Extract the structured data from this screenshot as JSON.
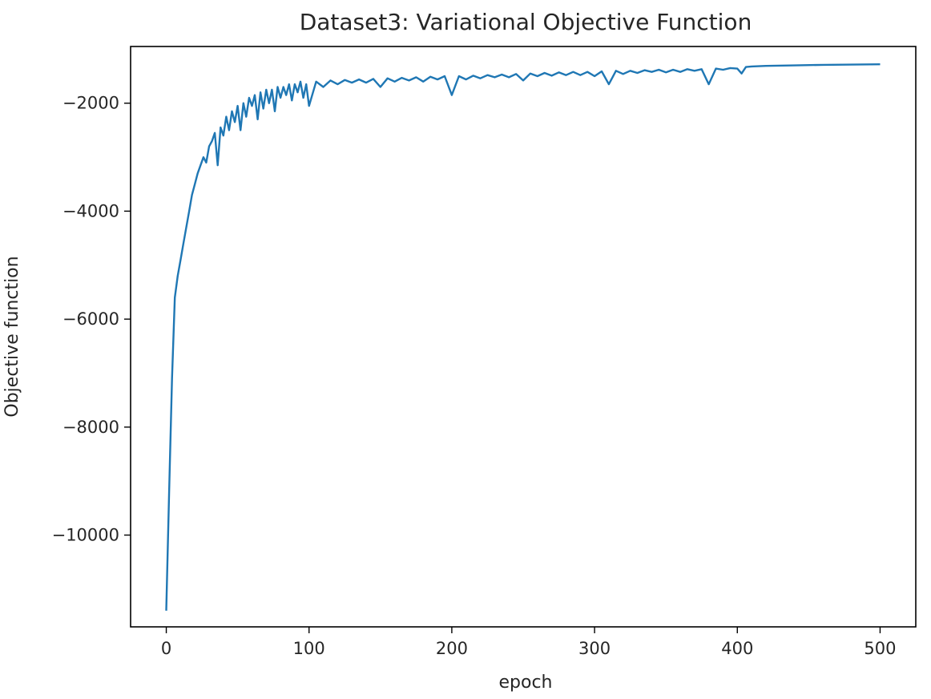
{
  "chart_data": {
    "type": "line",
    "title": "Dataset3: Variational Objective Function",
    "xlabel": "epoch",
    "ylabel": "Objective function",
    "xlim": [
      -25,
      525
    ],
    "ylim": [
      -11700,
      -950
    ],
    "xticks": [
      0,
      100,
      200,
      300,
      400,
      500
    ],
    "yticks": [
      -10000,
      -8000,
      -6000,
      -4000,
      -2000
    ],
    "xtick_labels": [
      "0",
      "100",
      "200",
      "300",
      "400",
      "500"
    ],
    "ytick_labels": [
      "−10000",
      "−8000",
      "−6000",
      "−4000",
      "−2000"
    ],
    "grid": false,
    "legend": "none",
    "line_color": "#1f77b4",
    "series": [
      {
        "x": [
          0,
          2,
          4,
          6,
          8,
          10,
          12,
          14,
          16,
          18,
          20,
          22,
          24,
          26,
          28,
          30,
          32,
          34,
          36,
          38,
          40,
          42,
          44,
          46,
          48,
          50,
          52,
          54,
          56,
          58,
          60,
          62,
          64,
          66,
          68,
          70,
          72,
          74,
          76,
          78,
          80,
          82,
          84,
          86,
          88,
          90,
          92,
          94,
          96,
          98,
          100,
          105,
          110,
          115,
          120,
          125,
          130,
          135,
          140,
          145,
          150,
          155,
          160,
          165,
          170,
          175,
          180,
          185,
          190,
          195,
          200,
          205,
          210,
          215,
          220,
          225,
          230,
          235,
          240,
          245,
          250,
          255,
          260,
          265,
          270,
          275,
          280,
          285,
          290,
          295,
          300,
          305,
          310,
          315,
          320,
          325,
          330,
          335,
          340,
          345,
          350,
          355,
          360,
          365,
          370,
          375,
          380,
          385,
          390,
          395,
          400,
          403,
          406,
          410,
          420,
          440,
          460,
          480,
          500
        ],
        "y": [
          -11400,
          -9200,
          -7100,
          -5600,
          -5200,
          -4900,
          -4600,
          -4300,
          -4000,
          -3700,
          -3500,
          -3300,
          -3150,
          -3000,
          -3100,
          -2800,
          -2700,
          -2550,
          -3150,
          -2450,
          -2600,
          -2250,
          -2500,
          -2150,
          -2350,
          -2050,
          -2500,
          -2000,
          -2250,
          -1900,
          -2050,
          -1850,
          -2300,
          -1800,
          -2100,
          -1750,
          -2000,
          -1750,
          -2150,
          -1700,
          -1900,
          -1700,
          -1850,
          -1650,
          -1950,
          -1650,
          -1800,
          -1600,
          -1900,
          -1650,
          -2050,
          -1600,
          -1700,
          -1580,
          -1650,
          -1570,
          -1620,
          -1560,
          -1620,
          -1550,
          -1700,
          -1540,
          -1600,
          -1530,
          -1580,
          -1520,
          -1600,
          -1510,
          -1560,
          -1500,
          -1850,
          -1500,
          -1560,
          -1490,
          -1540,
          -1480,
          -1520,
          -1470,
          -1520,
          -1460,
          -1580,
          -1450,
          -1500,
          -1440,
          -1490,
          -1430,
          -1480,
          -1420,
          -1480,
          -1420,
          -1500,
          -1410,
          -1650,
          -1400,
          -1460,
          -1400,
          -1440,
          -1390,
          -1420,
          -1380,
          -1430,
          -1380,
          -1420,
          -1370,
          -1400,
          -1370,
          -1650,
          -1360,
          -1380,
          -1350,
          -1360,
          -1450,
          -1330,
          -1320,
          -1310,
          -1300,
          -1290,
          -1285,
          -1280
        ]
      }
    ]
  }
}
